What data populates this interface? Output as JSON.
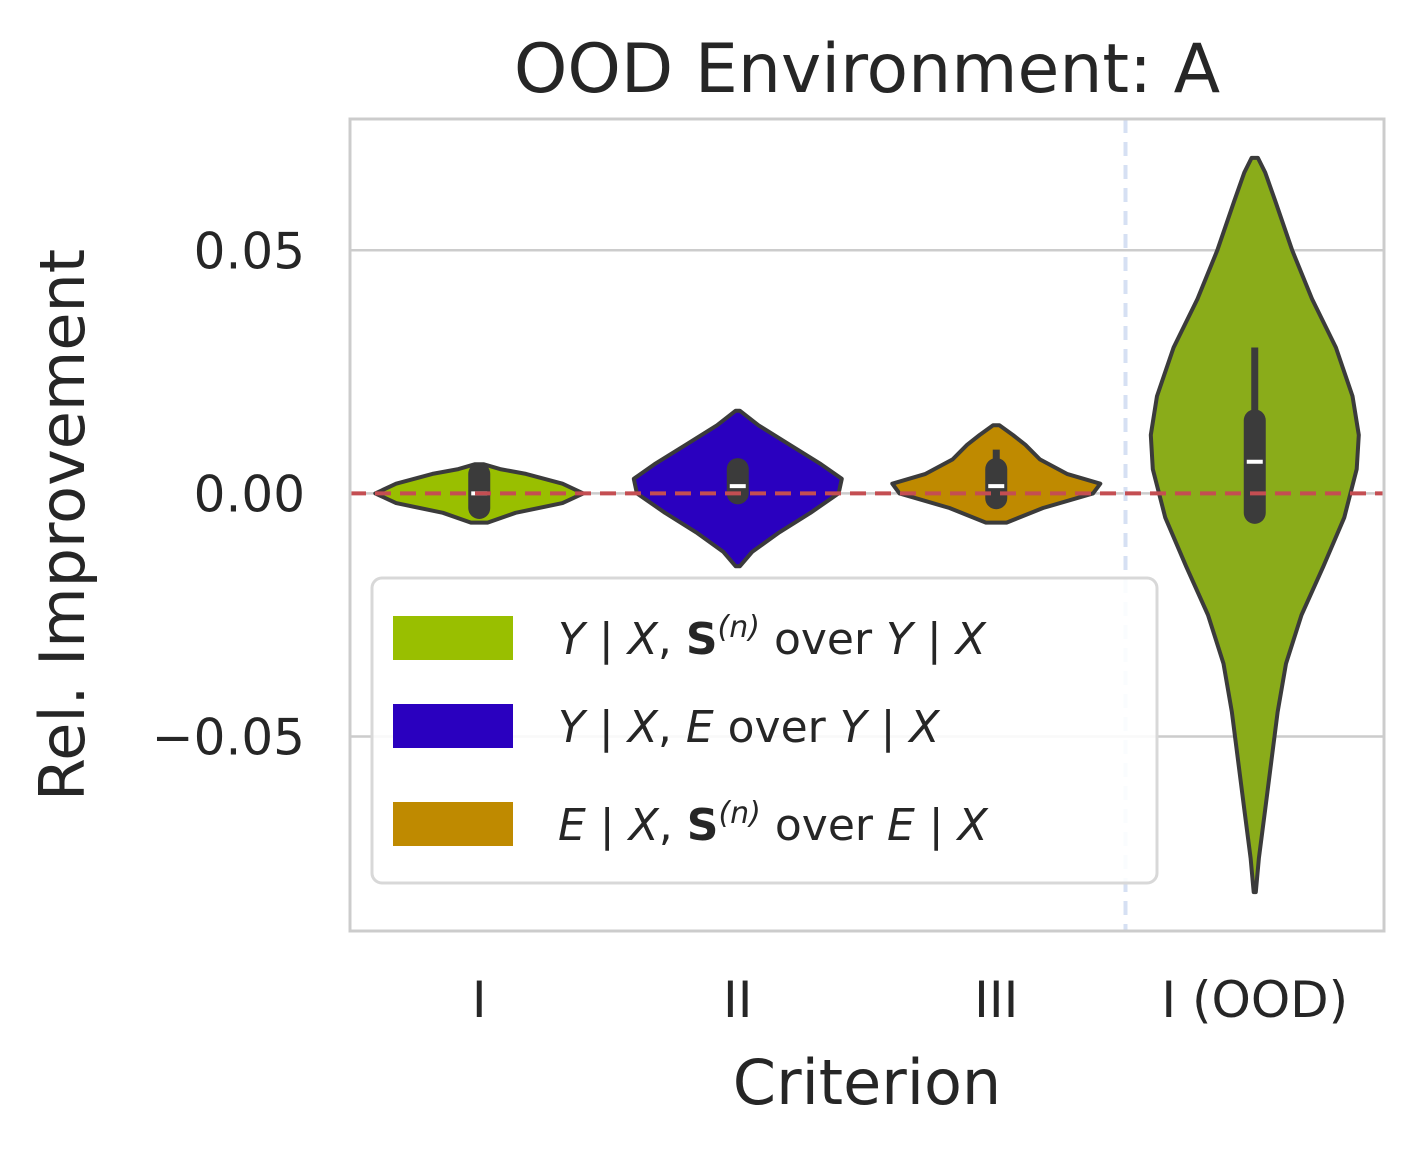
{
  "chart_data": {
    "type": "violin",
    "title": "OOD Environment: A",
    "xlabel": "Criterion",
    "ylabel": "Rel. Improvement",
    "ylim": [
      -0.09,
      0.077
    ],
    "yticks": [
      0.05,
      0.0,
      -0.05
    ],
    "ytick_labels": [
      "0.05",
      "0.00",
      "−0.05"
    ],
    "grid": true,
    "reference_line": {
      "y": 0.0,
      "style": "dashed",
      "color": "#c44e52"
    },
    "separator_after_category": 2,
    "colors": {
      "y_x_s": "#99bf00",
      "y_x_e": "#2a00bf",
      "e_x_s": "#bf8a00",
      "ood": "#8aac1a"
    },
    "categories": [
      {
        "label": "I",
        "color_key": "y_x_s",
        "min": -0.006,
        "max": 0.006,
        "q1": -0.003,
        "median": 0.0,
        "q3": 0.004,
        "whisker_low": -0.003,
        "whisker_high": 0.004,
        "density": [
          [
            -0.006,
            0.08
          ],
          [
            -0.004,
            0.35
          ],
          [
            -0.002,
            0.8
          ],
          [
            0.0,
            1.0
          ],
          [
            0.002,
            0.8
          ],
          [
            0.004,
            0.45
          ],
          [
            0.005,
            0.2
          ],
          [
            0.006,
            0.04
          ]
        ]
      },
      {
        "label": "II",
        "color_key": "y_x_e",
        "min": -0.015,
        "max": 0.017,
        "q1": 0.0,
        "median": 0.0015,
        "q3": 0.005,
        "whisker_low": 0.0,
        "whisker_high": 0.005,
        "density": [
          [
            -0.015,
            0.02
          ],
          [
            -0.012,
            0.14
          ],
          [
            -0.008,
            0.4
          ],
          [
            -0.004,
            0.7
          ],
          [
            0.0,
            0.97
          ],
          [
            0.003,
            1.0
          ],
          [
            0.006,
            0.8
          ],
          [
            0.01,
            0.5
          ],
          [
            0.014,
            0.2
          ],
          [
            0.017,
            0.02
          ]
        ]
      },
      {
        "label": "III",
        "color_key": "e_x_s",
        "min": -0.006,
        "max": 0.014,
        "q1": -0.001,
        "median": 0.0015,
        "q3": 0.005,
        "whisker_low": -0.001,
        "whisker_high": 0.009,
        "density": [
          [
            -0.006,
            0.1
          ],
          [
            -0.003,
            0.45
          ],
          [
            0.0,
            0.93
          ],
          [
            0.002,
            1.0
          ],
          [
            0.004,
            0.68
          ],
          [
            0.007,
            0.42
          ],
          [
            0.01,
            0.28
          ],
          [
            0.012,
            0.16
          ],
          [
            0.014,
            0.03
          ]
        ]
      },
      {
        "label": "I (OOD)",
        "color_key": "ood",
        "min": -0.082,
        "max": 0.069,
        "q1": -0.004,
        "median": 0.0065,
        "q3": 0.015,
        "whisker_low": -0.004,
        "whisker_high": 0.03,
        "density": [
          [
            -0.082,
            0.01
          ],
          [
            -0.075,
            0.04
          ],
          [
            -0.065,
            0.1
          ],
          [
            -0.055,
            0.16
          ],
          [
            -0.045,
            0.22
          ],
          [
            -0.035,
            0.3
          ],
          [
            -0.025,
            0.45
          ],
          [
            -0.015,
            0.66
          ],
          [
            -0.005,
            0.86
          ],
          [
            0.005,
            0.98
          ],
          [
            0.012,
            1.0
          ],
          [
            0.02,
            0.94
          ],
          [
            0.03,
            0.78
          ],
          [
            0.04,
            0.55
          ],
          [
            0.05,
            0.36
          ],
          [
            0.06,
            0.2
          ],
          [
            0.066,
            0.1
          ],
          [
            0.069,
            0.03
          ]
        ]
      }
    ],
    "legend": {
      "location": "lower-left",
      "entries": [
        {
          "color_key": "y_x_s",
          "parts": [
            {
              "t": "Y",
              "s": "it"
            },
            {
              "t": " | ",
              "s": "n"
            },
            {
              "t": "X",
              "s": "it"
            },
            {
              "t": ", ",
              "s": "n"
            },
            {
              "t": "S",
              "s": "bold"
            },
            {
              "t": "(n)",
              "s": "sup"
            },
            {
              "t": "  over ",
              "s": "n"
            },
            {
              "t": "Y",
              "s": "it"
            },
            {
              "t": " | ",
              "s": "n"
            },
            {
              "t": "X",
              "s": "it"
            }
          ]
        },
        {
          "color_key": "y_x_e",
          "parts": [
            {
              "t": "Y",
              "s": "it"
            },
            {
              "t": " | ",
              "s": "n"
            },
            {
              "t": "X",
              "s": "it"
            },
            {
              "t": ", ",
              "s": "n"
            },
            {
              "t": "E",
              "s": "it"
            },
            {
              "t": " over ",
              "s": "n"
            },
            {
              "t": "Y",
              "s": "it"
            },
            {
              "t": " | ",
              "s": "n"
            },
            {
              "t": "X",
              "s": "it"
            }
          ]
        },
        {
          "color_key": "e_x_s",
          "parts": [
            {
              "t": "E",
              "s": "it"
            },
            {
              "t": " | ",
              "s": "n"
            },
            {
              "t": "X",
              "s": "it"
            },
            {
              "t": ", ",
              "s": "n"
            },
            {
              "t": "S",
              "s": "bold"
            },
            {
              "t": "(n)",
              "s": "sup"
            },
            {
              "t": " over ",
              "s": "n"
            },
            {
              "t": "E",
              "s": "it"
            },
            {
              "t": " | ",
              "s": "n"
            },
            {
              "t": "X",
              "s": "it"
            }
          ]
        }
      ]
    }
  }
}
